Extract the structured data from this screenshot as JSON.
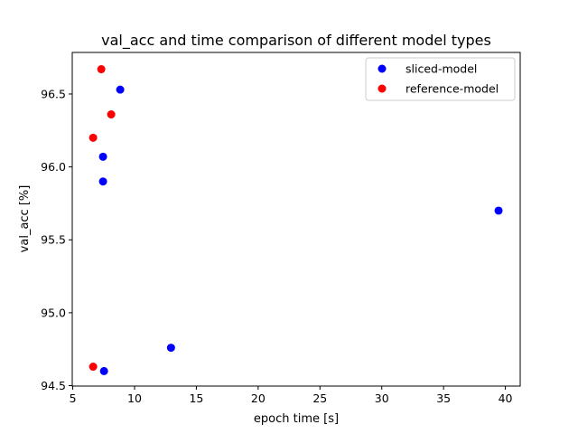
{
  "chart_data": {
    "type": "scatter",
    "title": "val_acc and time comparison of different model types",
    "xlabel": "epoch time [s]",
    "ylabel": "val_acc [%]",
    "xlim": [
      4.96,
      41.2
    ],
    "ylim": [
      94.497,
      96.785
    ],
    "xticks": [
      5,
      10,
      15,
      20,
      25,
      30,
      35,
      40
    ],
    "yticks": [
      94.5,
      95.0,
      95.5,
      96.0,
      96.5
    ],
    "xtick_labels": [
      "5",
      "10",
      "15",
      "20",
      "25",
      "30",
      "35",
      "40"
    ],
    "ytick_labels": [
      "94.5",
      "95.0",
      "95.5",
      "96.0",
      "96.5"
    ],
    "grid": false,
    "legend_position": "top-right",
    "series": [
      {
        "name": "sliced-model",
        "color": "#0000ff",
        "points": [
          {
            "x": 8.84,
            "y": 96.53
          },
          {
            "x": 7.45,
            "y": 96.07
          },
          {
            "x": 7.45,
            "y": 95.9
          },
          {
            "x": 39.45,
            "y": 95.7
          },
          {
            "x": 12.95,
            "y": 94.76
          },
          {
            "x": 7.53,
            "y": 94.6
          }
        ]
      },
      {
        "name": "reference-model",
        "color": "#ff0000",
        "points": [
          {
            "x": 7.31,
            "y": 96.67
          },
          {
            "x": 8.11,
            "y": 96.36
          },
          {
            "x": 6.65,
            "y": 96.2
          },
          {
            "x": 6.65,
            "y": 94.63
          }
        ]
      }
    ]
  }
}
